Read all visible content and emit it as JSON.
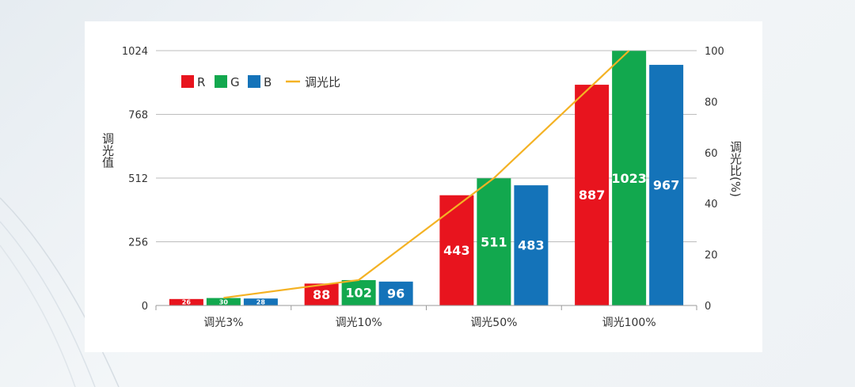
{
  "chart_data": {
    "type": "bar",
    "categories": [
      "调光3%",
      "调光10%",
      "调光50%",
      "调光100%"
    ],
    "series": [
      {
        "name": "R",
        "color": "#e8141e",
        "values": [
          26,
          88,
          443,
          887
        ]
      },
      {
        "name": "G",
        "color": "#12a84e",
        "values": [
          30,
          102,
          511,
          1023
        ]
      },
      {
        "name": "B",
        "color": "#1473b9",
        "values": [
          28,
          96,
          483,
          967
        ]
      }
    ],
    "line_series": {
      "name": "调光比",
      "color": "#f4b224",
      "values": [
        3,
        10,
        50,
        100
      ]
    },
    "ylabel": "调光值",
    "ylabel_right": "调光比(%)",
    "ylim": [
      0,
      1024
    ],
    "yticks": [
      "0",
      "256",
      "512",
      "768",
      "1024"
    ],
    "ylim_right": [
      0,
      100
    ],
    "yticks_right": [
      "0",
      "20",
      "40",
      "60",
      "80",
      "100"
    ],
    "legend_placement": "top-left",
    "grid": "horizontal"
  }
}
